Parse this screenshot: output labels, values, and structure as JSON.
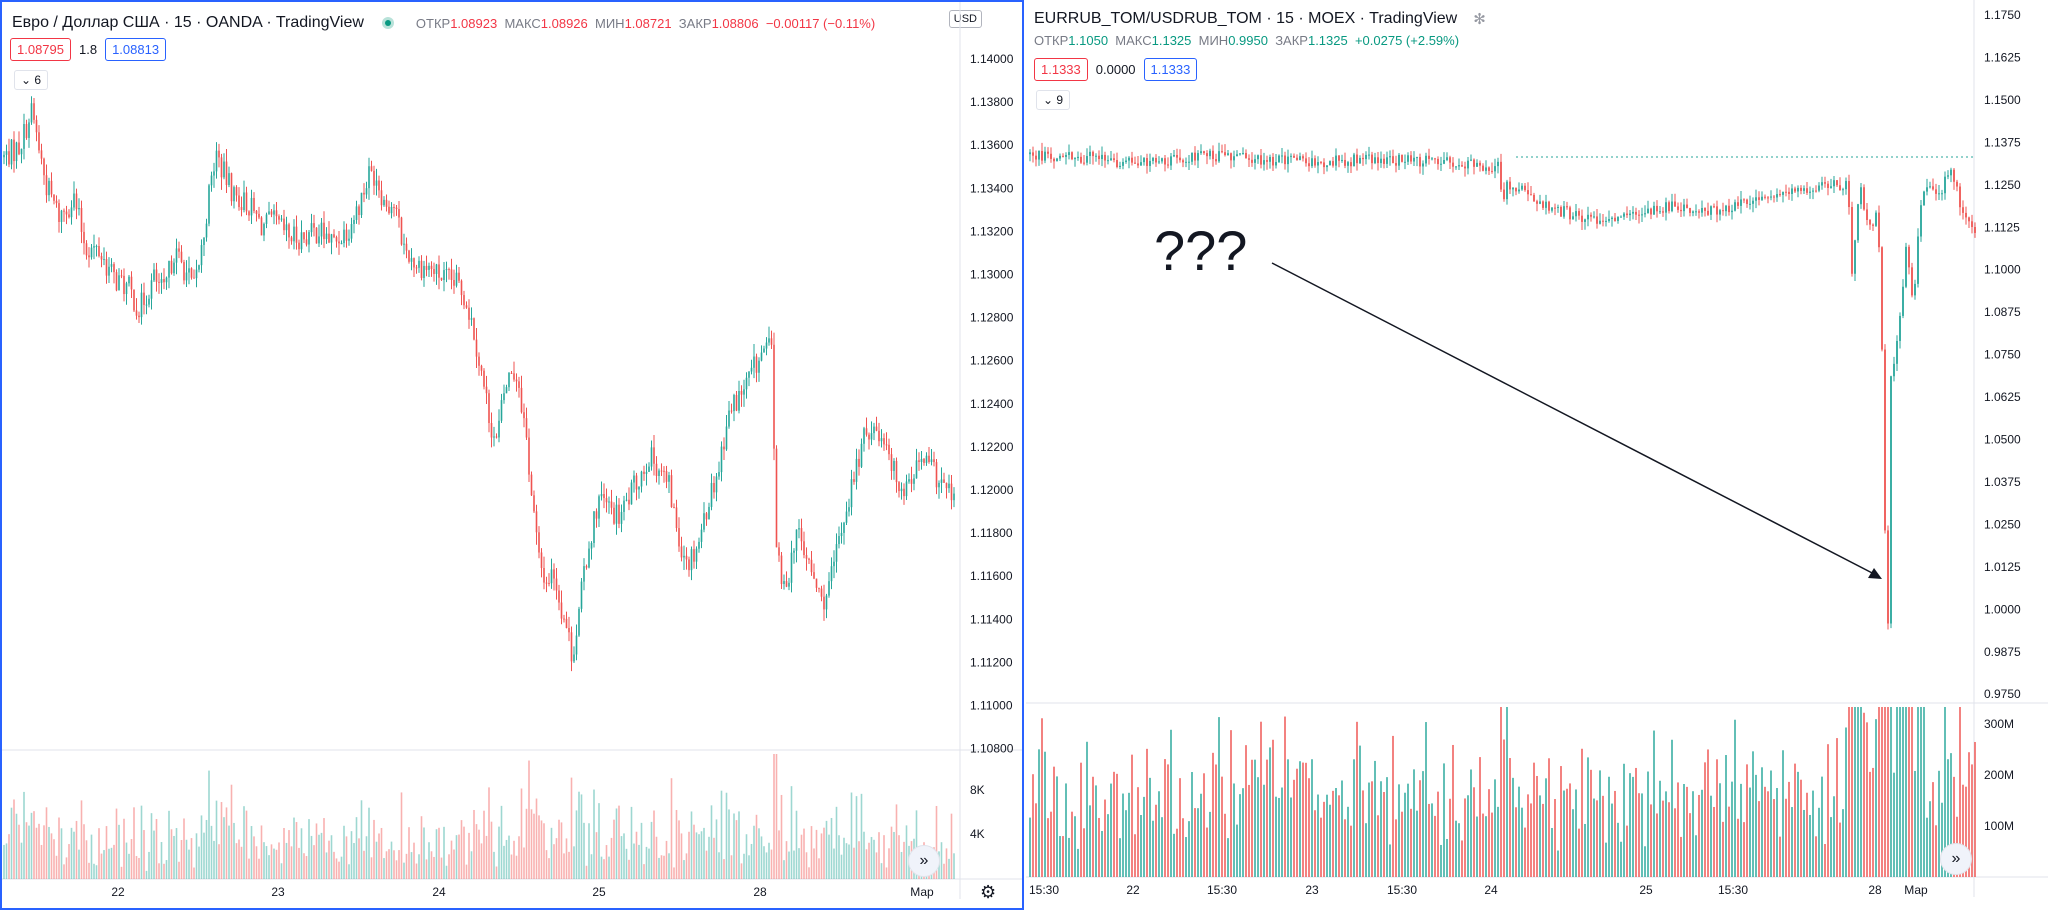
{
  "left": {
    "title": "Евро / Доллар США · 15 · OANDA · TradingView",
    "ohlc": {
      "o_label": "ОТКР",
      "o": "1.08923",
      "h_label": "МАКС",
      "h": "1.08926",
      "l_label": "МИН",
      "l": "1.08721",
      "c_label": "ЗАКР",
      "c": "1.08806",
      "chg": "−0.00117 (−0.11%)"
    },
    "bid": "1.08795",
    "spread": "1.8",
    "ask": "1.08813",
    "indicators_count": "6",
    "currency": "USD",
    "colors": {
      "up": "#26a69a",
      "down": "#ef5350",
      "border": "#2962ff"
    }
  },
  "right": {
    "title": "EURRUB_TOM/USDRUB_TOM · 15 · MOEX · TradingView",
    "ohlc": {
      "o_label": "ОТКР",
      "o": "1.1050",
      "h_label": "МАКС",
      "h": "1.1325",
      "l_label": "МИН",
      "l": "0.9950",
      "c_label": "ЗАКР",
      "c": "1.1325",
      "chg": "+0.0275 (+2.59%)"
    },
    "bid": "1.1333",
    "spread": "0.0000",
    "ask": "1.1333",
    "indicators_count": "9",
    "annotation": "???"
  },
  "chart_data": [
    {
      "type": "candlestick",
      "yticks": [
        "1.14000",
        "1.13800",
        "1.13600",
        "1.13400",
        "1.13200",
        "1.13000",
        "1.12800",
        "1.12600",
        "1.12400",
        "1.12200",
        "1.12000",
        "1.11800",
        "1.11600",
        "1.11400",
        "1.11200",
        "1.11000",
        "1.10800"
      ],
      "xticks": [
        "22",
        "23",
        "24",
        "25",
        "28",
        "Мар"
      ],
      "volume_ticks": [
        "8K",
        "4K"
      ],
      "ylim": [
        1.108,
        1.141
      ],
      "path": [
        [
          0,
          1.1363
        ],
        [
          15,
          1.1368
        ],
        [
          28,
          1.1385
        ],
        [
          42,
          1.135
        ],
        [
          55,
          1.1335
        ],
        [
          70,
          1.1343
        ],
        [
          82,
          1.132
        ],
        [
          95,
          1.1318
        ],
        [
          110,
          1.1305
        ],
        [
          125,
          1.13
        ],
        [
          135,
          1.129
        ],
        [
          150,
          1.1305
        ],
        [
          160,
          1.1298
        ],
        [
          170,
          1.1318
        ],
        [
          180,
          1.131
        ],
        [
          190,
          1.13
        ],
        [
          198,
          1.132
        ],
        [
          205,
          1.1345
        ],
        [
          212,
          1.1365
        ],
        [
          220,
          1.1355
        ],
        [
          230,
          1.1345
        ],
        [
          245,
          1.134
        ],
        [
          258,
          1.133
        ],
        [
          270,
          1.1332
        ],
        [
          285,
          1.1325
        ],
        [
          300,
          1.1325
        ],
        [
          315,
          1.1328
        ],
        [
          330,
          1.1322
        ],
        [
          345,
          1.133
        ],
        [
          355,
          1.134
        ],
        [
          365,
          1.1355
        ],
        [
          372,
          1.1355
        ],
        [
          380,
          1.1342
        ],
        [
          390,
          1.134
        ],
        [
          400,
          1.132
        ],
        [
          412,
          1.1312
        ],
        [
          425,
          1.131
        ],
        [
          440,
          1.1305
        ],
        [
          455,
          1.1302
        ],
        [
          462,
          1.1295
        ],
        [
          470,
          1.128
        ],
        [
          478,
          1.1258
        ],
        [
          485,
          1.124
        ],
        [
          492,
          1.1225
        ],
        [
          500,
          1.125
        ],
        [
          508,
          1.1262
        ],
        [
          515,
          1.1255
        ],
        [
          522,
          1.123
        ],
        [
          528,
          1.12
        ],
        [
          535,
          1.117
        ],
        [
          542,
          1.116
        ],
        [
          550,
          1.1165
        ],
        [
          556,
          1.115
        ],
        [
          562,
          1.114
        ],
        [
          568,
          1.1125
        ],
        [
          574,
          1.114
        ],
        [
          580,
          1.1165
        ],
        [
          588,
          1.1185
        ],
        [
          595,
          1.12
        ],
        [
          605,
          1.1195
        ],
        [
          615,
          1.119
        ],
        [
          625,
          1.12
        ],
        [
          635,
          1.121
        ],
        [
          645,
          1.122
        ],
        [
          655,
          1.1215
        ],
        [
          665,
          1.1205
        ],
        [
          675,
          1.118
        ],
        [
          685,
          1.117
        ],
        [
          695,
          1.118
        ],
        [
          705,
          1.12
        ],
        [
          715,
          1.1215
        ],
        [
          722,
          1.1235
        ],
        [
          730,
          1.1245
        ],
        [
          740,
          1.1252
        ],
        [
          750,
          1.1262
        ],
        [
          760,
          1.127
        ],
        [
          768,
          1.1272
        ],
        [
          772,
          1.118
        ],
        [
          778,
          1.1155
        ],
        [
          785,
          1.1165
        ],
        [
          792,
          1.1185
        ],
        [
          800,
          1.1175
        ],
        [
          810,
          1.116
        ],
        [
          818,
          1.115
        ],
        [
          826,
          1.1158
        ],
        [
          835,
          1.118
        ],
        [
          842,
          1.1195
        ],
        [
          850,
          1.121
        ],
        [
          858,
          1.1225
        ],
        [
          866,
          1.1235
        ],
        [
          875,
          1.123
        ],
        [
          882,
          1.123
        ],
        [
          890,
          1.1212
        ],
        [
          900,
          1.1205
        ],
        [
          910,
          1.1213
        ],
        [
          920,
          1.1218
        ],
        [
          930,
          1.1212
        ],
        [
          940,
          1.1205
        ],
        [
          950,
          1.12
        ]
      ]
    },
    {
      "type": "candlestick",
      "yticks": [
        "1.1750",
        "1.1625",
        "1.1500",
        "1.1375",
        "1.1250",
        "1.1125",
        "1.1000",
        "1.0875",
        "1.0750",
        "1.0625",
        "1.0500",
        "1.0375",
        "1.0250",
        "1.0125",
        "1.0000",
        "0.9875",
        "0.9750"
      ],
      "xticks": [
        "15:30",
        "22",
        "15:30",
        "23",
        "15:30",
        "24",
        "25",
        "15:30",
        "28",
        "Мар"
      ],
      "volume_ticks": [
        "300M",
        "200M",
        "100M"
      ],
      "ylim": [
        0.975,
        1.175
      ],
      "path": [
        [
          0,
          1.134
        ],
        [
          60,
          1.133
        ],
        [
          110,
          1.131
        ],
        [
          170,
          1.1335
        ],
        [
          230,
          1.1325
        ],
        [
          290,
          1.1318
        ],
        [
          350,
          1.1325
        ],
        [
          400,
          1.132
        ],
        [
          440,
          1.131
        ],
        [
          470,
          1.1302
        ],
        [
          472,
          1.115
        ],
        [
          476,
          1.125
        ],
        [
          490,
          1.124
        ],
        [
          520,
          1.118
        ],
        [
          560,
          1.115
        ],
        [
          600,
          1.116
        ],
        [
          640,
          1.119
        ],
        [
          680,
          1.117
        ],
        [
          720,
          1.12
        ],
        [
          760,
          1.122
        ],
        [
          790,
          1.125
        ],
        [
          818,
          1.1245
        ],
        [
          822,
          1.1
        ],
        [
          830,
          1.124
        ],
        [
          840,
          1.112
        ],
        [
          848,
          1.118
        ],
        [
          852,
          1.075
        ],
        [
          856,
          1.005
        ],
        [
          858,
          0.995
        ],
        [
          860,
          1.065
        ],
        [
          868,
          1.08
        ],
        [
          876,
          1.105
        ],
        [
          884,
          1.09
        ],
        [
          890,
          1.12
        ],
        [
          900,
          1.125
        ],
        [
          910,
          1.122
        ],
        [
          920,
          1.13
        ],
        [
          930,
          1.12
        ],
        [
          940,
          1.114
        ],
        [
          945,
          1.11
        ]
      ]
    }
  ]
}
